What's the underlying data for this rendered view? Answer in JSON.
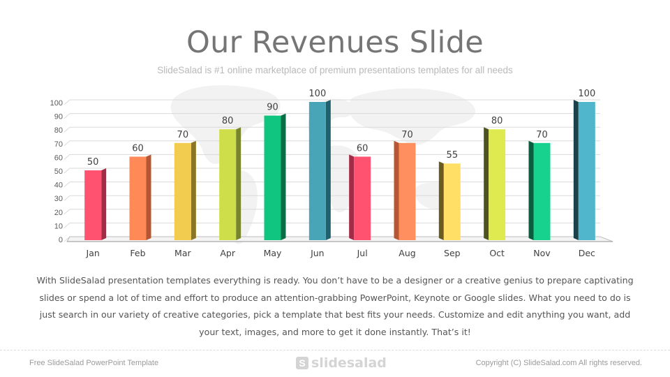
{
  "slide": {
    "title": "Our Revenues Slide",
    "subtitle": "SlideSalad is #1 online marketplace of premium presentations templates for all needs",
    "body": "With SlideSalad presentation templates everything is ready. You don’t have to be a designer or a creative genius to prepare captivating slides or spend a lot of time and effort to produce an attention-grabbing PowerPoint, Keynote or Google slides. What you need to do is just search in our variety of creative categories, pick a template that best fits your needs. Customize and edit anything you want, add your text, images, and more to get it done instantly. That’s it!",
    "footer_left": "Free SlideSalad PowerPoint Template",
    "footer_logo_mark": "S",
    "footer_logo_text": "slidesalad",
    "footer_right": "Copyright (C) SlideSalad.com All rights reserved."
  },
  "chart_data": {
    "type": "bar",
    "title": "",
    "xlabel": "",
    "ylabel": "",
    "categories": [
      "Jan",
      "Feb",
      "Mar",
      "Apr",
      "May",
      "Jun",
      "Jul",
      "Aug",
      "Sep",
      "Oct",
      "Nov",
      "Dec"
    ],
    "values": [
      50,
      60,
      70,
      80,
      90,
      100,
      60,
      70,
      55,
      80,
      70,
      100
    ],
    "ylim": [
      0,
      100
    ],
    "yticks": [
      0,
      10,
      20,
      30,
      40,
      50,
      60,
      70,
      80,
      90,
      100
    ],
    "grid": true,
    "legend": "none",
    "data_labels": true,
    "colors": [
      "#ff5271",
      "#ff8a57",
      "#f2cc4e",
      "#cede4a",
      "#0fc57f",
      "#48a5b8",
      "#ff5271",
      "#ff8f5f",
      "#ffdf66",
      "#deea50",
      "#17d18f",
      "#4fb6cb"
    ],
    "side_colors": [
      "#a22c45",
      "#b75632",
      "#8a7524",
      "#79852a",
      "#0d6d47",
      "#21616e",
      "#a22c45",
      "#b75632",
      "#6a5a20",
      "#4c5320",
      "#0e5c3f",
      "#1b4148"
    ]
  }
}
